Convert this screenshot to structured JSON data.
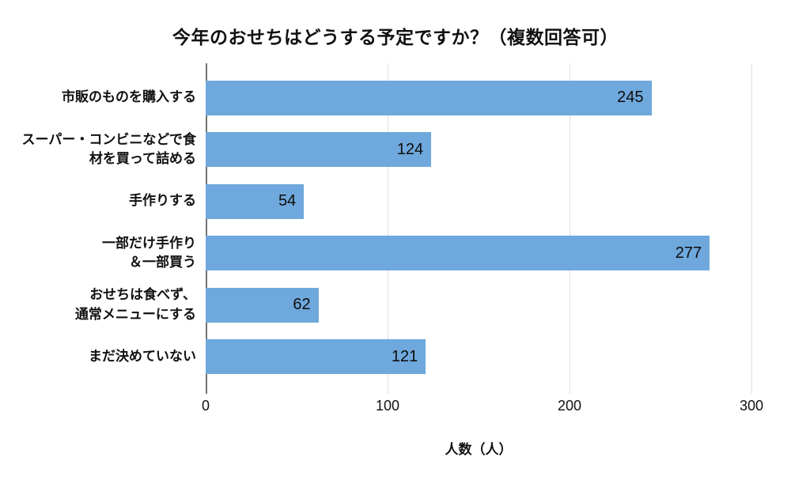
{
  "chart_data": {
    "type": "bar",
    "orientation": "horizontal",
    "title": "今年のおせちはどうする予定ですか？（複数回答可）",
    "categories": [
      "市販のものを購入する",
      "スーパー・コンビニなどで食\n材を買って詰める",
      "手作りする",
      "一部だけ手作り\n＆一部買う",
      "おせちは食べず、\n通常メニューにする",
      "まだ決めていない"
    ],
    "values": [
      245,
      124,
      54,
      277,
      62,
      121
    ],
    "xlabel": "人数（人）",
    "ylabel": "",
    "xlim": [
      0,
      300
    ],
    "xticks": [
      0,
      100,
      200,
      300
    ],
    "grid": true,
    "legend": false,
    "bar_color": "#6fa8dc",
    "gridline_color": "#e0e0e0",
    "axis_line_color": "#757575",
    "value_label_position": "inside-end"
  }
}
